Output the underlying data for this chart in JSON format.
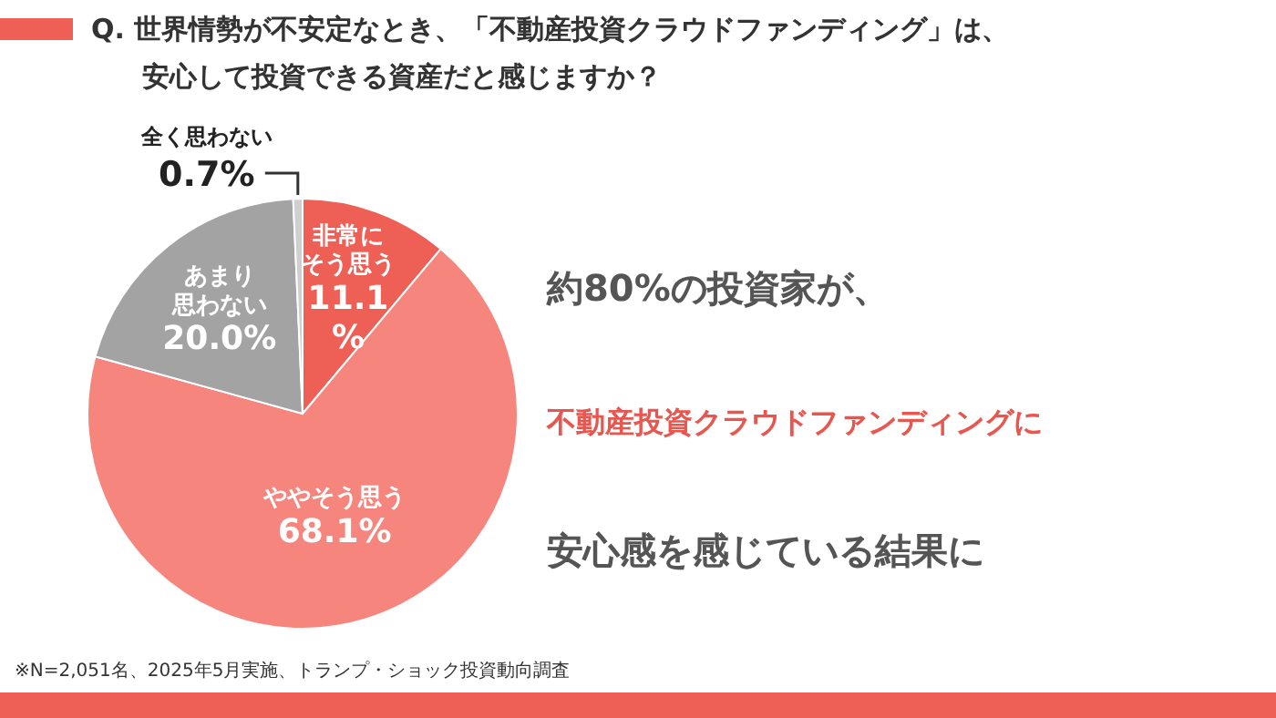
{
  "chart_data": {
    "type": "pie",
    "title": "Q. 世界情勢が不安定なとき、「不動産投資クラウドファンディング」は、安心して投資できる資産だと感じますか？",
    "categories": [
      "非常にそう思う",
      "ややそう思う",
      "あまり思わない",
      "全く思わない"
    ],
    "values": [
      11.1,
      68.1,
      20.0,
      0.7
    ],
    "colors": [
      "#ee6055",
      "#f6857d",
      "#a3a3a3",
      "#cfcfcf"
    ],
    "value_labels": [
      "11.1%",
      "68.1%",
      "20.0%",
      "0.7%"
    ],
    "annotations": [
      "約80%の投資家が、",
      "不動産投資クラウドファンディングに",
      "安心感を感じている結果に",
      "※N=2,051名、2025年5月実施、トランプ・ショック投資動向調査"
    ]
  }
}
